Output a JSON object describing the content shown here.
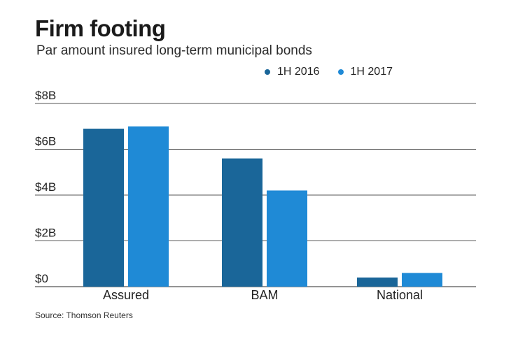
{
  "title": "Firm footing",
  "subtitle": "Par amount insured long-term municipal bonds",
  "source": "Source: Thomson Reuters",
  "colors": {
    "1H 2016": "#1a6699",
    "1H 2017": "#1f8ad6",
    "grid": "#555555"
  },
  "chart_data": {
    "type": "bar",
    "title": "Firm footing",
    "subtitle": "Par amount insured long-term municipal bonds",
    "categories": [
      "Assured",
      "BAM",
      "National"
    ],
    "series": [
      {
        "name": "1H 2016",
        "values": [
          6.9,
          5.6,
          0.4
        ]
      },
      {
        "name": "1H 2017",
        "values": [
          7.0,
          4.2,
          0.6
        ]
      }
    ],
    "unit": "billions USD",
    "yticks": [
      "$0",
      "$2B",
      "$4B",
      "$6B",
      "$8B"
    ],
    "ylim": [
      0,
      8
    ],
    "grid": true,
    "legend": "top-right"
  }
}
